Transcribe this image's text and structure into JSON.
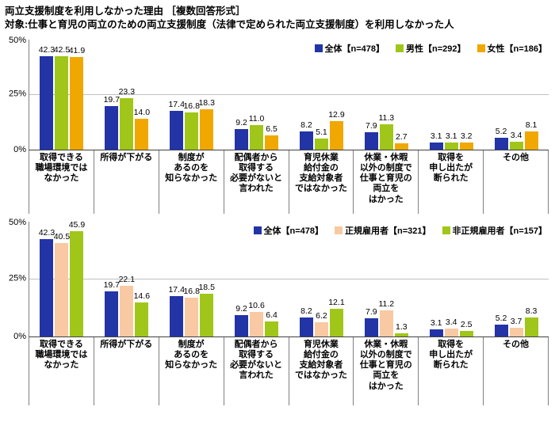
{
  "title": "両立支援制度を利用しなかった理由 ［複数回答形式］",
  "subtitle": "対象:仕事と育児の両立のための両立支援制度（法律で定められた両立支援制度）を利用しなかった人",
  "axis": {
    "yticks": [
      "50%",
      "25%",
      "0%"
    ],
    "ylim_label": "0-50%"
  },
  "chart_data": [
    {
      "type": "bar",
      "ylim": [
        0,
        50
      ],
      "yticks": [
        "50%",
        "25%",
        "0%"
      ],
      "grid": true,
      "legend_position": "top-right",
      "categories": [
        "取得できる\n職場環境では\nなかった",
        "所得が下がる",
        "制度が\nあるのを\n知らなかった",
        "配偶者から\n取得する\n必要がないと\n言われた",
        "育児休業\n給付金の\n支給対象者\nではなかった",
        "休業・休暇\n以外の制度で\n仕事と育児の\n両立を\nはかった",
        "取得を\n申し出たが\n断られた",
        "その他"
      ],
      "series": [
        {
          "name": "全体【n=478】",
          "color": "#2234a6",
          "values": [
            42.3,
            19.7,
            17.4,
            9.2,
            8.2,
            7.9,
            3.1,
            5.2
          ]
        },
        {
          "name": "男性【n=292】",
          "color": "#a0c619",
          "values": [
            42.5,
            23.3,
            16.8,
            11.0,
            5.1,
            11.3,
            3.1,
            3.4
          ]
        },
        {
          "name": "女性【n=186】",
          "color": "#f0a800",
          "values": [
            41.9,
            14.0,
            18.3,
            6.5,
            12.9,
            2.7,
            3.2,
            8.1
          ]
        }
      ]
    },
    {
      "type": "bar",
      "ylim": [
        0,
        50
      ],
      "yticks": [
        "50%",
        "25%",
        "0%"
      ],
      "grid": true,
      "legend_position": "top-right",
      "categories": [
        "取得できる\n職場環境では\nなかった",
        "所得が下がる",
        "制度が\nあるのを\n知らなかった",
        "配偶者から\n取得する\n必要がないと\n言われた",
        "育児休業\n給付金の\n支給対象者\nではなかった",
        "休業・休暇\n以外の制度で\n仕事と育児の\n両立を\nはかった",
        "取得を\n申し出たが\n断られた",
        "その他"
      ],
      "series": [
        {
          "name": "全体【n=478】",
          "color": "#2234a6",
          "values": [
            42.3,
            19.7,
            17.4,
            9.2,
            8.2,
            7.9,
            3.1,
            5.2
          ]
        },
        {
          "name": "正規雇用者【n=321】",
          "color": "#f8c9a2",
          "values": [
            40.5,
            22.1,
            16.8,
            10.6,
            6.2,
            11.2,
            3.4,
            3.7
          ]
        },
        {
          "name": "非正規雇用者【n=157】",
          "color": "#a0c619",
          "values": [
            45.9,
            14.6,
            18.5,
            6.4,
            12.1,
            1.3,
            2.5,
            8.3
          ]
        }
      ]
    }
  ]
}
